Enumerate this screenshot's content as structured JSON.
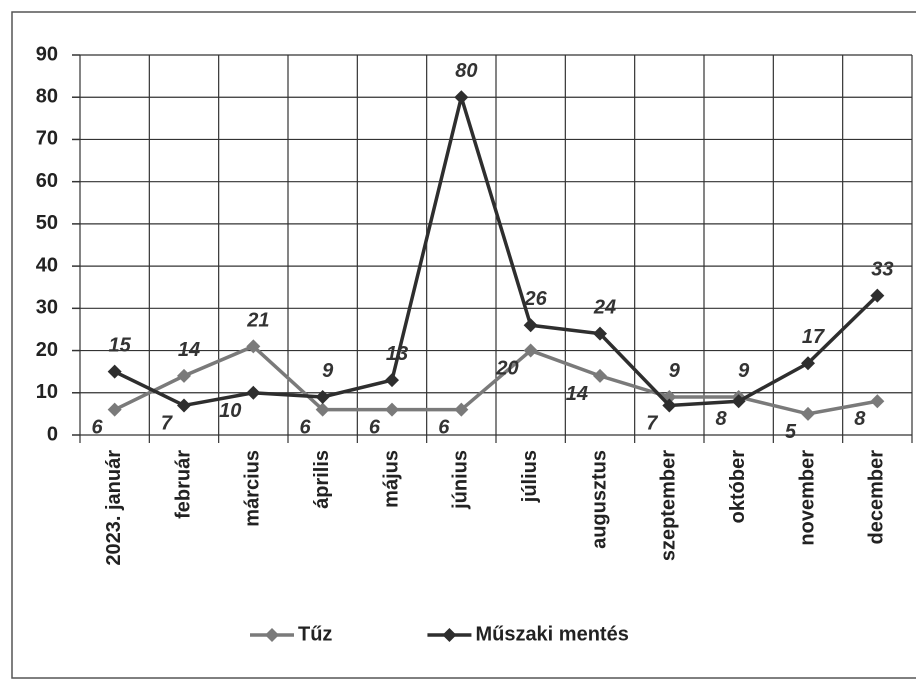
{
  "chart_data": {
    "type": "line",
    "categories": [
      "2023. január",
      "február",
      "március",
      "április",
      "május",
      "június",
      "július",
      "augusztus",
      "szeptember",
      "október",
      "november",
      "december"
    ],
    "series": [
      {
        "name": "Tűz",
        "color": "#7a7a7a",
        "values": [
          6,
          14,
          21,
          6,
          6,
          6,
          20,
          14,
          9,
          9,
          5,
          8
        ]
      },
      {
        "name": "Műszaki mentés",
        "color": "#2e2e2e",
        "values": [
          15,
          7,
          10,
          9,
          13,
          80,
          26,
          24,
          7,
          8,
          17,
          33
        ]
      }
    ],
    "ylim": [
      0,
      90
    ],
    "yticks": [
      0,
      10,
      20,
      30,
      40,
      50,
      60,
      70,
      80,
      90
    ],
    "grid": true,
    "legend": "bottom"
  }
}
